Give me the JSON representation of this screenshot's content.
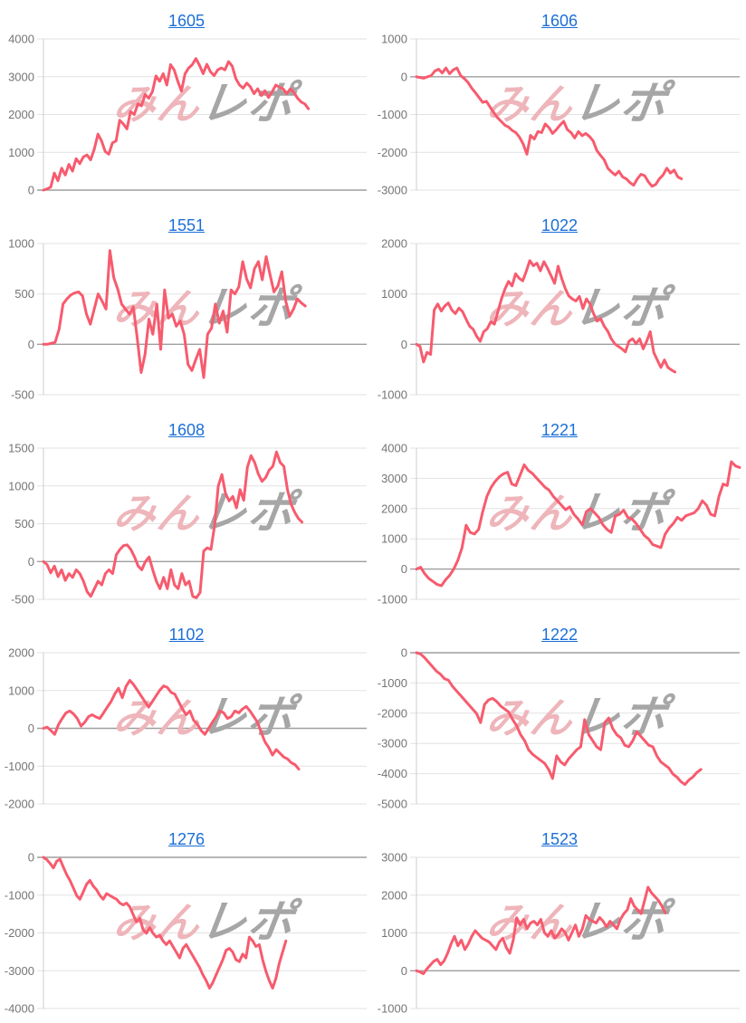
{
  "page": {
    "background": "#ffffff"
  },
  "style": {
    "line_color": "#f75b6e",
    "link_color": "#1b6fd8",
    "tick_color": "#757575",
    "grid_color": "#e2e2e2",
    "zero_line_color": "#9e9e9e",
    "axis_color": "#cccccc"
  },
  "watermark": {
    "pink_text": "みん",
    "gray_text": "レポ",
    "pink_color": "#eeb5ba",
    "gray_color": "#a6a6a6"
  },
  "chart_data": [
    {
      "type": "line",
      "title": "1605",
      "xlabel": "",
      "ylabel": "",
      "ylim": [
        0,
        4000
      ],
      "yticks": [
        4000,
        3000,
        2000,
        1000,
        0
      ],
      "grid": true,
      "legend": false,
      "x_fill": 0.82,
      "values": [
        0,
        30,
        80,
        450,
        250,
        580,
        400,
        680,
        500,
        830,
        700,
        880,
        930,
        800,
        1080,
        1480,
        1300,
        1020,
        950,
        1250,
        1300,
        1850,
        1750,
        1620,
        2080,
        2000,
        2280,
        2230,
        2530,
        2430,
        2600,
        3020,
        2880,
        3080,
        2780,
        3320,
        3180,
        2880,
        2620,
        3080,
        3230,
        3320,
        3480,
        3300,
        3080,
        3330,
        3130,
        3030,
        3180,
        3230,
        3180,
        3400,
        3280,
        2950,
        2780,
        2700,
        2830,
        2730,
        2550,
        2680,
        2500,
        2630,
        2450,
        2600,
        2780,
        2720,
        2680,
        2550,
        2680,
        2580,
        2430,
        2330,
        2280,
        2150
      ]
    },
    {
      "type": "line",
      "title": "1606",
      "xlabel": "",
      "ylabel": "",
      "ylim": [
        -3000,
        1000
      ],
      "yticks": [
        1000,
        0,
        -1000,
        -2000,
        -3000
      ],
      "grid": true,
      "legend": false,
      "x_fill": 0.82,
      "values": [
        0,
        -20,
        -40,
        0,
        30,
        150,
        200,
        100,
        230,
        80,
        180,
        230,
        30,
        -50,
        -150,
        -300,
        -420,
        -550,
        -680,
        -650,
        -800,
        -950,
        -1080,
        -1180,
        -1280,
        -1330,
        -1420,
        -1480,
        -1600,
        -1780,
        -2050,
        -1550,
        -1650,
        -1450,
        -1480,
        -1250,
        -1350,
        -1500,
        -1400,
        -1280,
        -1180,
        -1400,
        -1480,
        -1620,
        -1450,
        -1560,
        -1500,
        -1580,
        -1700,
        -1950,
        -2080,
        -2200,
        -2420,
        -2520,
        -2600,
        -2500,
        -2650,
        -2700,
        -2800,
        -2870,
        -2700,
        -2580,
        -2620,
        -2780,
        -2900,
        -2850,
        -2700,
        -2600,
        -2420,
        -2550,
        -2470,
        -2650,
        -2700
      ]
    },
    {
      "type": "line",
      "title": "1551",
      "xlabel": "",
      "ylabel": "",
      "ylim": [
        -500,
        1000
      ],
      "yticks": [
        1000,
        500,
        0,
        -500
      ],
      "grid": true,
      "legend": false,
      "x_fill": 0.81,
      "values": [
        0,
        0,
        10,
        20,
        150,
        400,
        450,
        490,
        510,
        520,
        480,
        300,
        200,
        350,
        500,
        430,
        350,
        930,
        660,
        550,
        400,
        350,
        300,
        370,
        60,
        -280,
        -100,
        250,
        100,
        400,
        -50,
        540,
        260,
        300,
        180,
        230,
        100,
        -200,
        -260,
        -150,
        -50,
        -330,
        100,
        160,
        400,
        210,
        330,
        120,
        540,
        500,
        570,
        820,
        650,
        560,
        750,
        820,
        640,
        870,
        690,
        520,
        580,
        720,
        430,
        280,
        350,
        450,
        410,
        380
      ]
    },
    {
      "type": "line",
      "title": "1022",
      "xlabel": "",
      "ylabel": "",
      "ylim": [
        -1000,
        2000
      ],
      "yticks": [
        2000,
        1000,
        0,
        -1000
      ],
      "grid": true,
      "legend": false,
      "x_fill": 0.8,
      "values": [
        0,
        -40,
        -350,
        -160,
        -200,
        680,
        800,
        660,
        760,
        820,
        680,
        610,
        720,
        650,
        500,
        360,
        300,
        160,
        60,
        250,
        310,
        450,
        400,
        650,
        900,
        1100,
        1250,
        1160,
        1400,
        1310,
        1260,
        1450,
        1660,
        1560,
        1610,
        1460,
        1640,
        1510,
        1360,
        1210,
        1550,
        1310,
        1110,
        960,
        900,
        860,
        950,
        710,
        900,
        800,
        610,
        460,
        510,
        360,
        260,
        110,
        10,
        -40,
        -90,
        -150,
        60,
        110,
        10,
        110,
        -90,
        60,
        250,
        -160,
        -310,
        -460,
        -310,
        -460,
        -510,
        -550
      ]
    },
    {
      "type": "line",
      "title": "1608",
      "xlabel": "",
      "ylabel": "",
      "ylim": [
        -500,
        1500
      ],
      "yticks": [
        1500,
        1000,
        500,
        0,
        -500
      ],
      "grid": true,
      "legend": false,
      "x_fill": 0.8,
      "values": [
        0,
        -40,
        -150,
        -60,
        -200,
        -110,
        -250,
        -160,
        -210,
        -110,
        -160,
        -260,
        -400,
        -460,
        -360,
        -260,
        -310,
        -160,
        -110,
        -160,
        90,
        160,
        210,
        220,
        160,
        60,
        -60,
        -110,
        0,
        60,
        -110,
        -260,
        -360,
        -210,
        -360,
        -110,
        -310,
        -360,
        -160,
        -310,
        -260,
        -460,
        -480,
        -410,
        140,
        180,
        160,
        480,
        1000,
        1150,
        900,
        800,
        860,
        710,
        950,
        810,
        1250,
        1400,
        1310,
        1160,
        1060,
        1110,
        1210,
        1260,
        1450,
        1310,
        1260,
        950,
        760,
        650,
        570,
        520
      ]
    },
    {
      "type": "line",
      "title": "1221",
      "xlabel": "",
      "ylabel": "",
      "ylim": [
        -1000,
        4000
      ],
      "yticks": [
        4000,
        3000,
        2000,
        1000,
        0,
        -1000
      ],
      "grid": true,
      "legend": false,
      "x_fill": 1.0,
      "values": [
        0,
        60,
        -160,
        -310,
        -410,
        -510,
        -550,
        -360,
        -210,
        0,
        300,
        700,
        1450,
        1210,
        1160,
        1310,
        1900,
        2400,
        2700,
        2900,
        3050,
        3150,
        3200,
        2810,
        2760,
        3100,
        3450,
        3260,
        3160,
        3010,
        2860,
        2710,
        2610,
        2410,
        2260,
        2110,
        1960,
        2060,
        1810,
        1660,
        1460,
        1900,
        2000,
        1860,
        1710,
        1460,
        1310,
        1210,
        1760,
        1810,
        1950,
        1710,
        1660,
        1510,
        1310,
        1110,
        1000,
        810,
        760,
        710,
        1150,
        1360,
        1510,
        1710,
        1610,
        1760,
        1810,
        1860,
        2000,
        2260,
        2110,
        1810,
        1760,
        2400,
        2810,
        2760,
        3550,
        3410,
        3360
      ]
    },
    {
      "type": "line",
      "title": "1102",
      "xlabel": "",
      "ylabel": "",
      "ylim": [
        -2000,
        2000
      ],
      "yticks": [
        2000,
        1000,
        0,
        -1000,
        -2000
      ],
      "grid": true,
      "legend": false,
      "x_fill": 0.79,
      "values": [
        0,
        30,
        -60,
        -160,
        100,
        260,
        410,
        460,
        380,
        260,
        60,
        160,
        310,
        360,
        300,
        260,
        410,
        560,
        710,
        910,
        1060,
        810,
        1110,
        1270,
        1160,
        1010,
        860,
        710,
        560,
        710,
        860,
        1010,
        1120,
        1080,
        950,
        900,
        710,
        510,
        360,
        460,
        210,
        110,
        -60,
        -160,
        0,
        160,
        310,
        460,
        410,
        260,
        310,
        460,
        410,
        510,
        580,
        460,
        310,
        160,
        -110,
        -360,
        -510,
        -710,
        -560,
        -660,
        -760,
        -810,
        -910,
        -960,
        -1080
      ]
    },
    {
      "type": "line",
      "title": "1222",
      "xlabel": "",
      "ylabel": "",
      "ylim": [
        -5000,
        0
      ],
      "yticks": [
        0,
        -1000,
        -2000,
        -3000,
        -4000,
        -5000
      ],
      "grid": true,
      "legend": false,
      "x_fill": 0.88,
      "values": [
        0,
        -40,
        -160,
        -310,
        -460,
        -610,
        -710,
        -860,
        -910,
        -1110,
        -1260,
        -1410,
        -1560,
        -1710,
        -1860,
        -2010,
        -2310,
        -1710,
        -1560,
        -1510,
        -1610,
        -1760,
        -1860,
        -1960,
        -2210,
        -2410,
        -2710,
        -2910,
        -3210,
        -3360,
        -3460,
        -3560,
        -3660,
        -3860,
        -4160,
        -3410,
        -3610,
        -3710,
        -3510,
        -3360,
        -3210,
        -3110,
        -2210,
        -2710,
        -2910,
        -3110,
        -3210,
        -2310,
        -2160,
        -2510,
        -2710,
        -2810,
        -3060,
        -3110,
        -2910,
        -2610,
        -2760,
        -2910,
        -3060,
        -3110,
        -3410,
        -3610,
        -3710,
        -3810,
        -4010,
        -4110,
        -4260,
        -4360,
        -4210,
        -4110,
        -3960,
        -3860
      ]
    },
    {
      "type": "line",
      "title": "1276",
      "xlabel": "",
      "ylabel": "",
      "ylim": [
        -4000,
        0
      ],
      "yticks": [
        0,
        -1000,
        -2000,
        -3000,
        -4000
      ],
      "grid": true,
      "legend": false,
      "x_fill": 0.75,
      "values": [
        0,
        -60,
        -160,
        -280,
        -100,
        -50,
        -260,
        -460,
        -610,
        -810,
        -1010,
        -1110,
        -910,
        -710,
        -610,
        -760,
        -860,
        -1010,
        -1110,
        -960,
        -1010,
        -1060,
        -1110,
        -1210,
        -1260,
        -1210,
        -1310,
        -1510,
        -1710,
        -1610,
        -1910,
        -2010,
        -1860,
        -2010,
        -2110,
        -2060,
        -2210,
        -2310,
        -2210,
        -2360,
        -2510,
        -2660,
        -2410,
        -2310,
        -2460,
        -2610,
        -2760,
        -2910,
        -3110,
        -3260,
        -3460,
        -3310,
        -3110,
        -2910,
        -2710,
        -2460,
        -2410,
        -2510,
        -2710,
        -2760,
        -2560,
        -2660,
        -2110,
        -2210,
        -2360,
        -2310,
        -2710,
        -3010,
        -3260,
        -3460,
        -3210,
        -2810,
        -2510,
        -2210
      ]
    },
    {
      "type": "line",
      "title": "1523",
      "xlabel": "",
      "ylabel": "",
      "ylim": [
        -1000,
        3000
      ],
      "yticks": [
        3000,
        2000,
        1000,
        0,
        -1000
      ],
      "grid": true,
      "legend": false,
      "x_fill": 0.77,
      "values": [
        0,
        -30,
        -80,
        50,
        150,
        250,
        300,
        160,
        260,
        460,
        710,
        910,
        660,
        810,
        560,
        710,
        910,
        1060,
        960,
        860,
        810,
        760,
        660,
        560,
        760,
        860,
        610,
        460,
        810,
        1400,
        1210,
        1360,
        1110,
        1260,
        1310,
        1210,
        1360,
        1010,
        910,
        1060,
        860,
        960,
        1110,
        1010,
        810,
        1010,
        1210,
        910,
        1110,
        1460,
        1360,
        1310,
        1260,
        1410,
        1310,
        1160,
        1310,
        1210,
        1110,
        1360,
        1510,
        1610,
        1910,
        1710,
        1610,
        1510,
        1860,
        2210,
        2060,
        1960,
        1860,
        1710,
        1530
      ]
    }
  ]
}
